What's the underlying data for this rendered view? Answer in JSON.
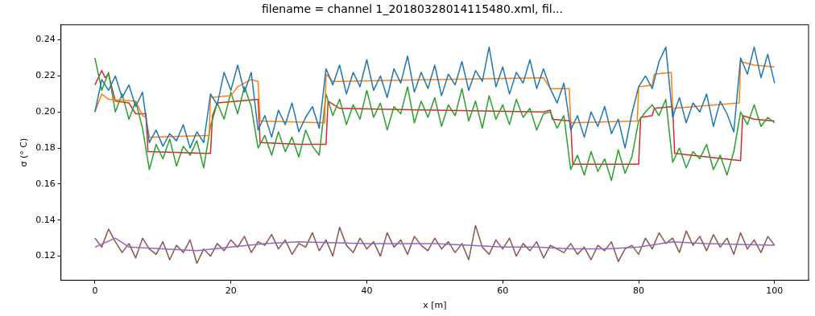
{
  "chart_data": {
    "type": "line",
    "title": "filename = channel 1_20180328014115480.xml, fil...",
    "xlabel": "x [m]",
    "ylabel": "σ (° C)",
    "x": [
      0,
      1,
      2,
      3,
      4,
      5,
      6,
      7,
      8,
      9,
      10,
      11,
      12,
      13,
      14,
      15,
      16,
      17,
      18,
      19,
      20,
      21,
      22,
      23,
      24,
      25,
      26,
      27,
      28,
      29,
      30,
      31,
      32,
      33,
      34,
      35,
      36,
      37,
      38,
      39,
      40,
      41,
      42,
      43,
      44,
      45,
      46,
      47,
      48,
      49,
      50,
      51,
      52,
      53,
      54,
      55,
      56,
      57,
      58,
      59,
      60,
      61,
      62,
      63,
      64,
      65,
      66,
      67,
      68,
      69,
      70,
      71,
      72,
      73,
      74,
      75,
      76,
      77,
      78,
      79,
      80,
      81,
      82,
      83,
      84,
      85,
      86,
      87,
      88,
      89,
      90,
      91,
      92,
      93,
      94,
      95,
      96,
      97,
      98,
      99,
      100
    ],
    "series": [
      {
        "color": "#1f77b4",
        "values": [
          0.2,
          0.218,
          0.212,
          0.22,
          0.208,
          0.215,
          0.203,
          0.211,
          0.183,
          0.19,
          0.181,
          0.188,
          0.184,
          0.193,
          0.18,
          0.189,
          0.183,
          0.21,
          0.204,
          0.222,
          0.212,
          0.226,
          0.211,
          0.222,
          0.19,
          0.198,
          0.186,
          0.201,
          0.193,
          0.205,
          0.189,
          0.197,
          0.203,
          0.191,
          0.224,
          0.215,
          0.226,
          0.21,
          0.222,
          0.214,
          0.229,
          0.212,
          0.22,
          0.208,
          0.224,
          0.216,
          0.231,
          0.211,
          0.222,
          0.213,
          0.226,
          0.209,
          0.221,
          0.215,
          0.228,
          0.212,
          0.223,
          0.217,
          0.236,
          0.214,
          0.225,
          0.21,
          0.222,
          0.216,
          0.229,
          0.213,
          0.224,
          0.213,
          0.205,
          0.216,
          0.19,
          0.198,
          0.186,
          0.2,
          0.192,
          0.203,
          0.188,
          0.196,
          0.18,
          0.199,
          0.214,
          0.22,
          0.213,
          0.228,
          0.236,
          0.197,
          0.208,
          0.194,
          0.205,
          0.2,
          0.21,
          0.192,
          0.206,
          0.199,
          0.189,
          0.23,
          0.221,
          0.236,
          0.219,
          0.232,
          0.216
        ]
      },
      {
        "color": "#ff7f0e",
        "x": [
          0,
          1,
          2,
          6,
          7,
          7.5,
          8,
          16.8,
          17,
          20,
          21,
          23,
          24,
          24.3,
          33.8,
          34,
          35,
          36,
          50,
          66,
          67,
          69.8,
          70,
          79.8,
          80,
          82,
          82.3,
          84.8,
          85,
          94.8,
          95,
          97,
          100
        ],
        "values": [
          0.2,
          0.21,
          0.207,
          0.206,
          0.198,
          0.197,
          0.186,
          0.187,
          0.208,
          0.209,
          0.214,
          0.218,
          0.217,
          0.195,
          0.194,
          0.221,
          0.217,
          0.217,
          0.218,
          0.219,
          0.213,
          0.213,
          0.194,
          0.195,
          0.214,
          0.215,
          0.221,
          0.222,
          0.202,
          0.205,
          0.228,
          0.226,
          0.225
        ]
      },
      {
        "color": "#2ca02c",
        "values": [
          0.23,
          0.212,
          0.222,
          0.2,
          0.21,
          0.196,
          0.206,
          0.191,
          0.168,
          0.182,
          0.174,
          0.185,
          0.17,
          0.181,
          0.176,
          0.184,
          0.169,
          0.192,
          0.205,
          0.196,
          0.211,
          0.199,
          0.214,
          0.203,
          0.18,
          0.187,
          0.176,
          0.189,
          0.178,
          0.186,
          0.175,
          0.19,
          0.181,
          0.176,
          0.21,
          0.198,
          0.207,
          0.193,
          0.204,
          0.196,
          0.212,
          0.197,
          0.205,
          0.19,
          0.203,
          0.199,
          0.214,
          0.194,
          0.206,
          0.197,
          0.208,
          0.192,
          0.204,
          0.198,
          0.213,
          0.195,
          0.206,
          0.191,
          0.209,
          0.196,
          0.204,
          0.193,
          0.207,
          0.197,
          0.202,
          0.19,
          0.199,
          0.2,
          0.191,
          0.198,
          0.168,
          0.176,
          0.165,
          0.178,
          0.167,
          0.174,
          0.162,
          0.179,
          0.166,
          0.175,
          0.195,
          0.2,
          0.204,
          0.198,
          0.207,
          0.172,
          0.18,
          0.169,
          0.178,
          0.174,
          0.182,
          0.168,
          0.176,
          0.165,
          0.178,
          0.2,
          0.193,
          0.204,
          0.192,
          0.197,
          0.194
        ]
      },
      {
        "color": "#d62728",
        "x": [
          0,
          1,
          1.5,
          2,
          3,
          5,
          6,
          7.5,
          7.8,
          17,
          17.3,
          18,
          24,
          24.3,
          30,
          34,
          34.3,
          36,
          50,
          66,
          67,
          67.3,
          70,
          70.3,
          80,
          80.3,
          82,
          82.3,
          85,
          85.3,
          95,
          95.3,
          97,
          100
        ],
        "values": [
          0.215,
          0.223,
          0.219,
          0.221,
          0.206,
          0.205,
          0.199,
          0.199,
          0.178,
          0.177,
          0.198,
          0.205,
          0.207,
          0.183,
          0.182,
          0.182,
          0.206,
          0.202,
          0.201,
          0.2,
          0.201,
          0.196,
          0.195,
          0.171,
          0.171,
          0.197,
          0.198,
          0.202,
          0.203,
          0.177,
          0.173,
          0.198,
          0.196,
          0.195
        ]
      },
      {
        "color": "#9467bd",
        "x": [
          0,
          3,
          5,
          10,
          15,
          20,
          25,
          30,
          40,
          50,
          55,
          60,
          65,
          70,
          75,
          80,
          85,
          90,
          100
        ],
        "values": [
          0.125,
          0.13,
          0.125,
          0.124,
          0.123,
          0.125,
          0.127,
          0.128,
          0.127,
          0.127,
          0.126,
          0.125,
          0.125,
          0.124,
          0.124,
          0.125,
          0.128,
          0.127,
          0.126
        ]
      },
      {
        "color": "#8c564b",
        "values": [
          0.13,
          0.125,
          0.135,
          0.128,
          0.122,
          0.127,
          0.119,
          0.13,
          0.124,
          0.121,
          0.128,
          0.118,
          0.126,
          0.122,
          0.129,
          0.116,
          0.124,
          0.12,
          0.127,
          0.123,
          0.129,
          0.125,
          0.131,
          0.122,
          0.128,
          0.126,
          0.132,
          0.124,
          0.129,
          0.121,
          0.127,
          0.125,
          0.133,
          0.123,
          0.129,
          0.12,
          0.136,
          0.126,
          0.122,
          0.13,
          0.124,
          0.128,
          0.12,
          0.133,
          0.125,
          0.129,
          0.121,
          0.131,
          0.126,
          0.123,
          0.13,
          0.124,
          0.128,
          0.122,
          0.127,
          0.118,
          0.137,
          0.125,
          0.121,
          0.129,
          0.124,
          0.13,
          0.12,
          0.127,
          0.123,
          0.128,
          0.119,
          0.126,
          0.124,
          0.122,
          0.127,
          0.121,
          0.125,
          0.118,
          0.126,
          0.123,
          0.128,
          0.117,
          0.124,
          0.126,
          0.121,
          0.13,
          0.124,
          0.133,
          0.127,
          0.13,
          0.122,
          0.134,
          0.126,
          0.131,
          0.123,
          0.132,
          0.125,
          0.13,
          0.121,
          0.133,
          0.124,
          0.129,
          0.122,
          0.131,
          0.126
        ]
      }
    ],
    "xlim": [
      -5,
      105
    ],
    "xticks": [
      0,
      20,
      40,
      60,
      80,
      100
    ],
    "ylim": [
      0.1066,
      0.2484
    ],
    "yticks": [
      0.12,
      0.14,
      0.16,
      0.18,
      {
        "value": 0.2,
        "label": "0.20"
      },
      0.22,
      0.24
    ],
    "grid": false,
    "legend": false,
    "marker": "none",
    "line_style": "solid"
  }
}
